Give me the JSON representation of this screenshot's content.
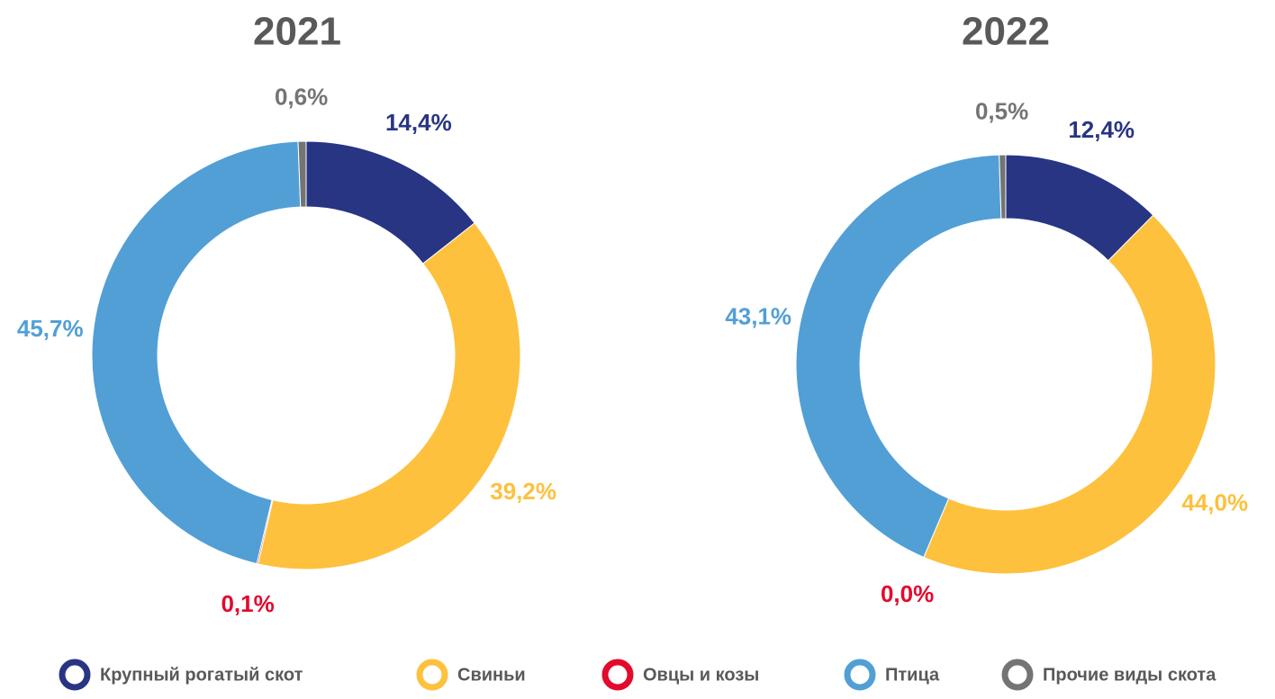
{
  "chart_data": [
    {
      "type": "donut",
      "title": "2021",
      "categories": [
        "Крупный рогатый скот",
        "Свиньи",
        "Овцы и козы",
        "Птица",
        "Прочие виды скота"
      ],
      "values": [
        14.4,
        39.2,
        0.1,
        45.7,
        0.6
      ],
      "value_labels": [
        "14,4%",
        "39,2%",
        "0,1%",
        "45,7%",
        "0,6%"
      ],
      "colors": [
        "#283583",
        "#fdc13e",
        "#e30a2c",
        "#529fd6",
        "#747474"
      ]
    },
    {
      "type": "donut",
      "title": "2022",
      "categories": [
        "Крупный рогатый скот",
        "Свиньи",
        "Овцы и козы",
        "Птица",
        "Прочие виды скота"
      ],
      "values": [
        12.4,
        44.0,
        0.0,
        43.1,
        0.5
      ],
      "value_labels": [
        "12,4%",
        "44,0%",
        "0,0%",
        "43,1%",
        "0,5%"
      ],
      "colors": [
        "#283583",
        "#fdc13e",
        "#e30a2c",
        "#529fd6",
        "#747474"
      ]
    }
  ]
}
